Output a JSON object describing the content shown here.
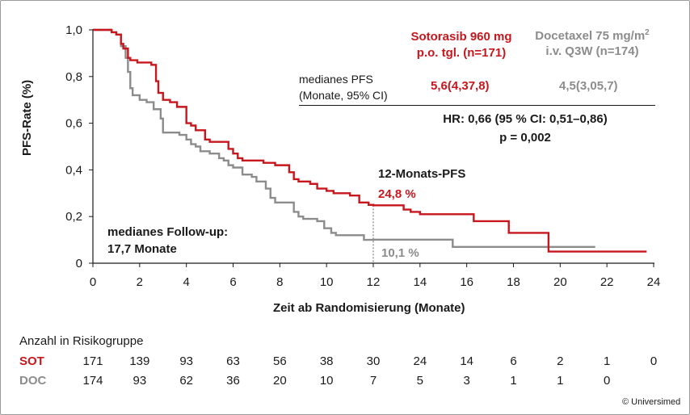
{
  "chart_data": {
    "type": "line",
    "subtype": "kaplan-meier step",
    "xlabel": "Zeit ab Randomisierung (Monate)",
    "ylabel": "PFS-Rate (%)",
    "xlim": [
      0,
      24
    ],
    "ylim": [
      0,
      1.0
    ],
    "x_ticks": [
      "0",
      "2",
      "4",
      "6",
      "8",
      "10",
      "12",
      "14",
      "16",
      "18",
      "20",
      "22",
      "24"
    ],
    "y_ticks": [
      "0",
      "0,2",
      "0,4",
      "0,6",
      "0,8",
      "1,0"
    ],
    "grid": false,
    "series": [
      {
        "name": "Sotorasib 960 mg p.o. tgl. (n=171)",
        "color": "#c8161d",
        "points": [
          [
            0,
            1.0
          ],
          [
            0.4,
            1.0
          ],
          [
            0.8,
            0.99
          ],
          [
            1.0,
            0.98
          ],
          [
            1.2,
            0.94
          ],
          [
            1.3,
            0.92
          ],
          [
            1.5,
            0.88
          ],
          [
            1.6,
            0.87
          ],
          [
            1.9,
            0.86
          ],
          [
            2.5,
            0.85
          ],
          [
            2.7,
            0.78
          ],
          [
            2.8,
            0.73
          ],
          [
            3.0,
            0.7
          ],
          [
            3.3,
            0.69
          ],
          [
            3.6,
            0.67
          ],
          [
            4.0,
            0.6
          ],
          [
            4.2,
            0.59
          ],
          [
            4.4,
            0.57
          ],
          [
            4.8,
            0.53
          ],
          [
            5.0,
            0.52
          ],
          [
            5.6,
            0.52
          ],
          [
            5.8,
            0.49
          ],
          [
            6.0,
            0.47
          ],
          [
            6.2,
            0.45
          ],
          [
            6.4,
            0.44
          ],
          [
            7.3,
            0.43
          ],
          [
            7.8,
            0.42
          ],
          [
            8.4,
            0.39
          ],
          [
            8.6,
            0.36
          ],
          [
            8.8,
            0.35
          ],
          [
            9.3,
            0.34
          ],
          [
            9.6,
            0.32
          ],
          [
            10.0,
            0.31
          ],
          [
            10.3,
            0.3
          ],
          [
            11.0,
            0.29
          ],
          [
            11.4,
            0.26
          ],
          [
            11.8,
            0.25
          ],
          [
            12.0,
            0.248
          ],
          [
            13.0,
            0.248
          ],
          [
            13.3,
            0.23
          ],
          [
            13.6,
            0.22
          ],
          [
            14.0,
            0.21
          ],
          [
            15.5,
            0.21
          ],
          [
            16.3,
            0.18
          ],
          [
            17.8,
            0.13
          ],
          [
            19.4,
            0.13
          ],
          [
            19.5,
            0.05
          ],
          [
            23.7,
            0.05
          ]
        ]
      },
      {
        "name": "Docetaxel 75 mg/m² i.v. Q3W (n=174)",
        "color": "#8c8c8c",
        "points": [
          [
            0,
            1.0
          ],
          [
            0.5,
            1.0
          ],
          [
            0.8,
            0.99
          ],
          [
            1.0,
            0.98
          ],
          [
            1.2,
            0.93
          ],
          [
            1.4,
            0.88
          ],
          [
            1.5,
            0.82
          ],
          [
            1.6,
            0.75
          ],
          [
            1.7,
            0.72
          ],
          [
            2.0,
            0.7
          ],
          [
            2.3,
            0.69
          ],
          [
            2.6,
            0.66
          ],
          [
            2.9,
            0.62
          ],
          [
            3.0,
            0.56
          ],
          [
            3.7,
            0.55
          ],
          [
            4.0,
            0.53
          ],
          [
            4.2,
            0.51
          ],
          [
            4.4,
            0.5
          ],
          [
            4.6,
            0.48
          ],
          [
            5.0,
            0.47
          ],
          [
            5.4,
            0.45
          ],
          [
            5.6,
            0.44
          ],
          [
            5.8,
            0.42
          ],
          [
            6.0,
            0.41
          ],
          [
            6.4,
            0.38
          ],
          [
            6.8,
            0.37
          ],
          [
            7.0,
            0.35
          ],
          [
            7.4,
            0.32
          ],
          [
            7.6,
            0.28
          ],
          [
            7.8,
            0.26
          ],
          [
            8.4,
            0.26
          ],
          [
            8.6,
            0.22
          ],
          [
            8.8,
            0.2
          ],
          [
            9.0,
            0.19
          ],
          [
            9.6,
            0.18
          ],
          [
            9.9,
            0.15
          ],
          [
            10.2,
            0.13
          ],
          [
            10.4,
            0.12
          ],
          [
            11.2,
            0.12
          ],
          [
            11.6,
            0.1
          ],
          [
            12.0,
            0.101
          ],
          [
            15.3,
            0.101
          ],
          [
            15.4,
            0.07
          ],
          [
            21.5,
            0.07
          ]
        ]
      }
    ],
    "annotations": {
      "label_12m": "12-Monats-PFS",
      "sot_12m": "24,8 %",
      "doc_12m": "10,1 %",
      "followup_line1": "medianes Follow-up:",
      "followup_line2": "17,7 Monate"
    },
    "legend": {
      "sot_line1": "Sotorasib 960 mg",
      "sot_line2": "p.o. tgl. (n=171)",
      "doc_line1_pre": "Docetaxel 75 mg/m",
      "doc_line1_sup": "2",
      "doc_line2": "i.v. Q3W (n=174)"
    },
    "stats": {
      "median_label_1": "medianes PFS",
      "median_label_2": "(Monate, 95% CI)",
      "sot_median": "5,6(4,37,8)",
      "doc_median": "4,5(3,05,7)",
      "hr": "HR: 0,66 (95 % CI: 0,51–0,86)",
      "p": "p = 0,002"
    }
  },
  "risk_table": {
    "title": "Anzahl in Risikogruppe",
    "rows": [
      {
        "label": "SOT",
        "color": "#c8161d",
        "values": [
          "171",
          "139",
          "93",
          "63",
          "56",
          "38",
          "30",
          "24",
          "14",
          "6",
          "2",
          "1",
          "0"
        ]
      },
      {
        "label": "DOC",
        "color": "#8c8c8c",
        "values": [
          "174",
          "93",
          "62",
          "36",
          "20",
          "10",
          "7",
          "5",
          "3",
          "1",
          "1",
          "0"
        ]
      }
    ]
  },
  "copyright": "© Universimed"
}
